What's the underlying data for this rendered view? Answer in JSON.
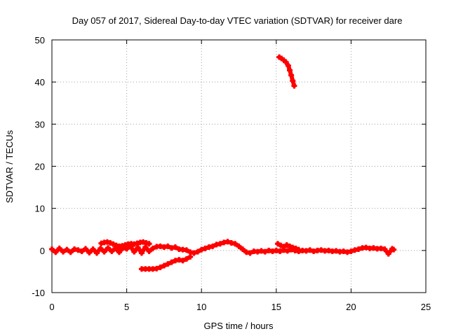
{
  "chart_data": {
    "type": "scatter",
    "title": "Day 057 of 2017, Sidereal Day-to-day VTEC variation (SDTVAR) for receiver dare",
    "xlabel": "GPS time / hours",
    "ylabel": "SDTVAR / TECUs",
    "xlim": [
      0,
      25
    ],
    "ylim": [
      -10,
      50
    ],
    "xticks": [
      0,
      5,
      10,
      15,
      20,
      25
    ],
    "yticks": [
      -10,
      0,
      10,
      20,
      30,
      40,
      50
    ],
    "grid": true,
    "legend": "none",
    "marker": "plus",
    "series": [
      {
        "name": "main-band",
        "color": "#ff0000",
        "points": [
          [
            0.0,
            0.3
          ],
          [
            0.25,
            -0.4
          ],
          [
            0.5,
            0.5
          ],
          [
            0.75,
            -0.3
          ],
          [
            1.0,
            0.2
          ],
          [
            1.25,
            -0.4
          ],
          [
            1.5,
            0.3
          ],
          [
            1.75,
            0.1
          ],
          [
            2.0,
            -0.2
          ],
          [
            2.25,
            0.4
          ],
          [
            2.5,
            -0.5
          ],
          [
            2.75,
            0.3
          ],
          [
            3.0,
            -0.6
          ],
          [
            3.25,
            0.5
          ],
          [
            3.5,
            -0.3
          ],
          [
            3.75,
            0.6
          ],
          [
            4.0,
            -0.2
          ],
          [
            4.25,
            0.5
          ],
          [
            4.5,
            -0.4
          ],
          [
            4.75,
            0.6
          ],
          [
            5.0,
            0.4
          ],
          [
            5.25,
            1.0
          ],
          [
            5.5,
            -0.3
          ],
          [
            5.75,
            0.7
          ],
          [
            6.0,
            -0.6
          ],
          [
            6.25,
            0.8
          ],
          [
            6.5,
            -0.2
          ],
          [
            6.75,
            0.5
          ],
          [
            7.0,
            0.9
          ],
          [
            7.25,
            1.0
          ],
          [
            7.5,
            0.8
          ],
          [
            7.75,
            1.0
          ],
          [
            8.0,
            0.6
          ],
          [
            8.25,
            0.8
          ],
          [
            8.5,
            0.3
          ],
          [
            8.75,
            0.2
          ],
          [
            9.0,
            0.1
          ],
          [
            9.25,
            -0.4
          ],
          [
            9.5,
            -0.6
          ],
          [
            9.75,
            -0.3
          ],
          [
            10.0,
            0.2
          ],
          [
            10.25,
            0.5
          ],
          [
            10.5,
            0.8
          ],
          [
            10.75,
            1.0
          ],
          [
            11.0,
            1.4
          ],
          [
            11.25,
            1.6
          ],
          [
            11.5,
            1.9
          ],
          [
            11.75,
            2.1
          ],
          [
            12.0,
            1.8
          ],
          [
            12.25,
            1.6
          ],
          [
            12.5,
            1.0
          ],
          [
            12.75,
            0.3
          ],
          [
            13.0,
            -0.4
          ],
          [
            13.25,
            -0.6
          ],
          [
            13.5,
            -0.2
          ],
          [
            13.75,
            -0.3
          ],
          [
            14.0,
            -0.1
          ],
          [
            14.25,
            -0.3
          ],
          [
            14.5,
            0.0
          ],
          [
            14.75,
            -0.2
          ],
          [
            15.0,
            0.0
          ],
          [
            15.25,
            -0.2
          ],
          [
            15.5,
            0.1
          ],
          [
            15.75,
            -0.1
          ],
          [
            16.0,
            0.2
          ],
          [
            16.25,
            0.0
          ],
          [
            16.5,
            -0.2
          ],
          [
            16.75,
            0.0
          ],
          [
            17.0,
            -0.1
          ],
          [
            17.25,
            0.1
          ],
          [
            17.5,
            -0.2
          ],
          [
            17.75,
            0.0
          ],
          [
            18.0,
            0.1
          ],
          [
            18.25,
            -0.1
          ],
          [
            18.5,
            0.0
          ],
          [
            18.75,
            -0.2
          ],
          [
            19.0,
            -0.1
          ],
          [
            19.25,
            -0.3
          ],
          [
            19.5,
            -0.2
          ],
          [
            19.75,
            -0.4
          ],
          [
            20.0,
            -0.2
          ],
          [
            20.25,
            0.1
          ],
          [
            20.5,
            0.3
          ],
          [
            20.75,
            0.6
          ],
          [
            21.0,
            0.7
          ],
          [
            21.25,
            0.5
          ],
          [
            21.5,
            0.6
          ],
          [
            21.75,
            0.4
          ],
          [
            22.0,
            0.5
          ],
          [
            22.25,
            0.3
          ],
          [
            22.5,
            -0.8
          ],
          [
            22.75,
            0.4
          ],
          [
            22.85,
            0.2
          ]
        ]
      },
      {
        "name": "upper-cluster",
        "color": "#ff0000",
        "points": [
          [
            3.3,
            1.7
          ],
          [
            3.5,
            1.9
          ],
          [
            3.7,
            2.0
          ],
          [
            3.9,
            1.8
          ],
          [
            4.1,
            1.5
          ],
          [
            4.3,
            1.2
          ],
          [
            4.5,
            1.0
          ],
          [
            4.7,
            1.1
          ],
          [
            4.9,
            1.3
          ],
          [
            5.1,
            1.5
          ],
          [
            5.3,
            1.6
          ],
          [
            5.5,
            1.5
          ],
          [
            5.7,
            1.7
          ],
          [
            5.9,
            1.9
          ],
          [
            6.1,
            2.0
          ],
          [
            6.3,
            1.8
          ],
          [
            6.5,
            1.6
          ]
        ]
      },
      {
        "name": "lower-arc",
        "color": "#ff0000",
        "points": [
          [
            6.0,
            -4.4
          ],
          [
            6.25,
            -4.4
          ],
          [
            6.5,
            -4.4
          ],
          [
            6.75,
            -4.4
          ],
          [
            7.0,
            -4.3
          ],
          [
            7.25,
            -4.0
          ],
          [
            7.5,
            -3.6
          ],
          [
            7.75,
            -3.2
          ],
          [
            8.0,
            -2.8
          ],
          [
            8.25,
            -2.4
          ],
          [
            8.5,
            -2.2
          ],
          [
            8.75,
            -2.4
          ],
          [
            9.0,
            -2.0
          ],
          [
            9.25,
            -1.5
          ]
        ]
      },
      {
        "name": "post-gap",
        "color": "#ff0000",
        "points": [
          [
            15.1,
            1.6
          ],
          [
            15.3,
            1.2
          ],
          [
            15.5,
            0.9
          ],
          [
            15.7,
            1.3
          ],
          [
            15.9,
            1.0
          ],
          [
            16.1,
            0.7
          ],
          [
            16.3,
            0.5
          ],
          [
            16.5,
            0.2
          ]
        ]
      },
      {
        "name": "spike",
        "color": "#ff0000",
        "points": [
          [
            15.2,
            45.9
          ],
          [
            15.35,
            45.6
          ],
          [
            15.5,
            45.2
          ],
          [
            15.65,
            44.7
          ],
          [
            15.8,
            43.9
          ],
          [
            15.9,
            42.8
          ],
          [
            16.0,
            41.6
          ],
          [
            16.1,
            40.3
          ],
          [
            16.2,
            39.1
          ]
        ]
      }
    ]
  }
}
